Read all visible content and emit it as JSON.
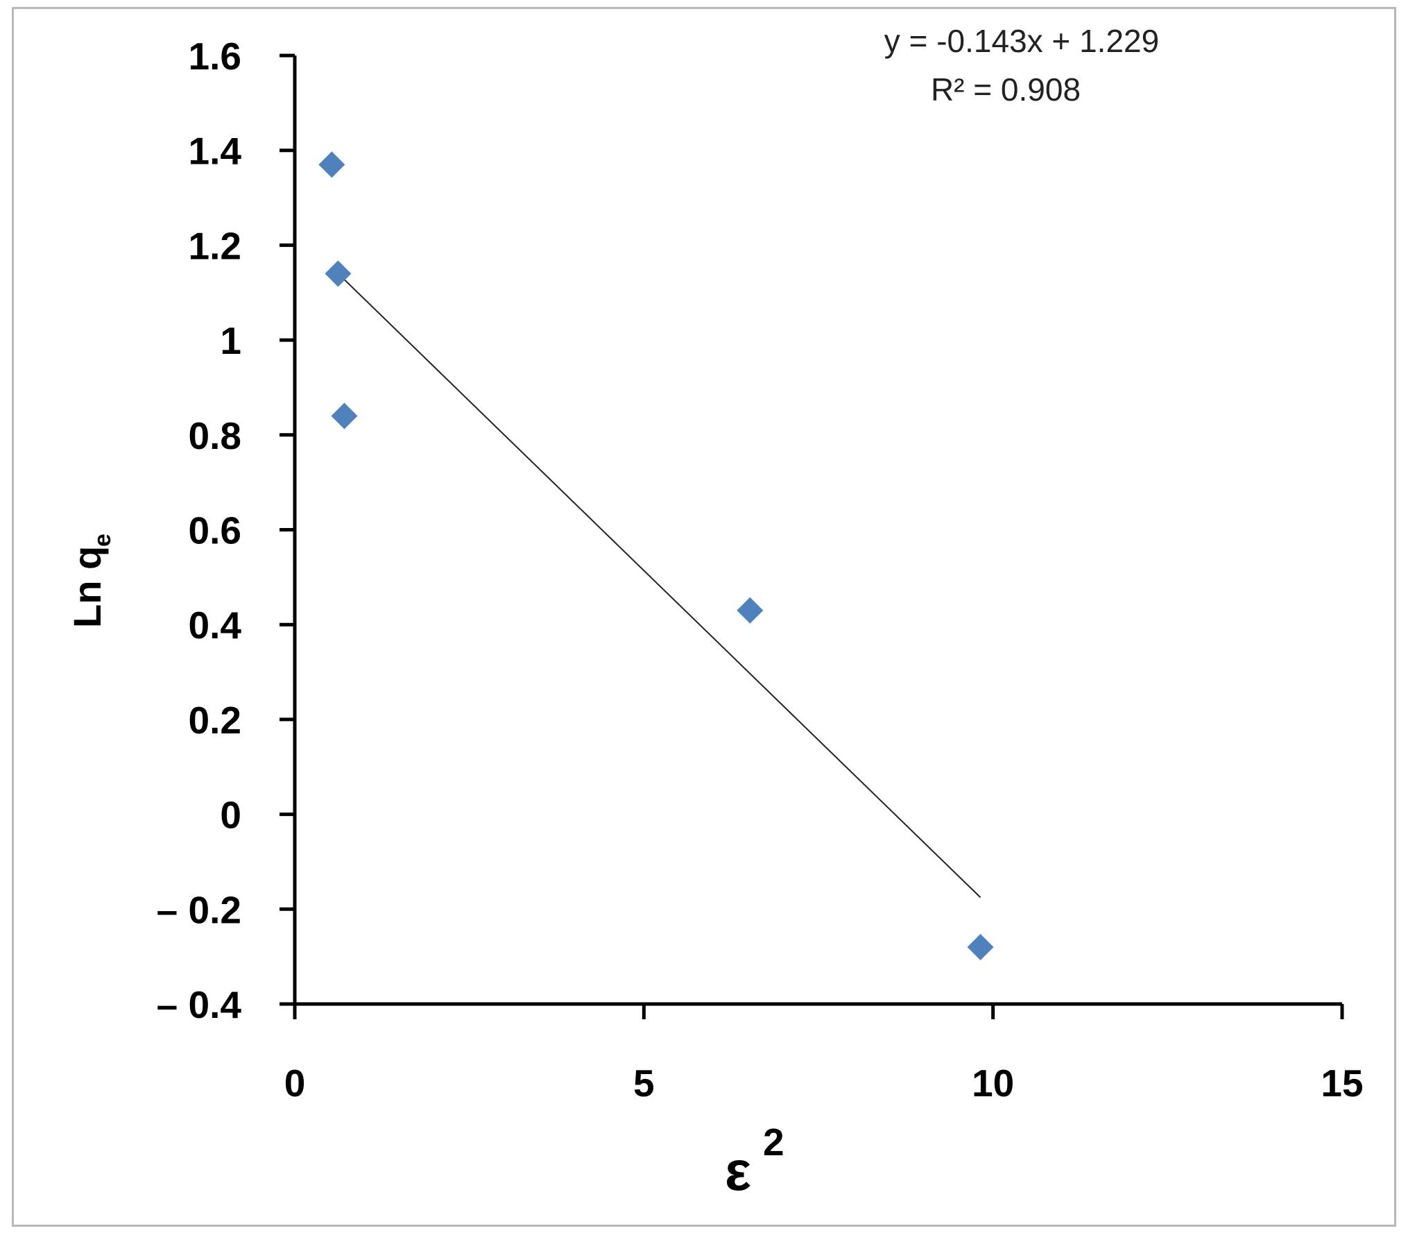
{
  "chart_data": {
    "type": "scatter",
    "title": "",
    "xlabel": "ε",
    "xlabel_superscript": "2",
    "ylabel": "Ln q",
    "ylabel_subscript": "e",
    "xlim": [
      0,
      15
    ],
    "ylim": [
      -0.4,
      1.6
    ],
    "x_ticks": [
      "0",
      "5",
      "10",
      "15"
    ],
    "y_ticks": [
      "1.6",
      "1.4",
      "1.2",
      "1",
      "0.8",
      "0.6",
      "0.4",
      "0.2",
      "0",
      "– 0.2",
      "– 0.4"
    ],
    "grid": false,
    "legend": "none",
    "marker": "diamond",
    "marker_color": "#4f81bd",
    "series": [
      {
        "points": [
          {
            "x": 0.53,
            "y": 1.37
          },
          {
            "x": 0.62,
            "y": 1.14
          },
          {
            "x": 0.71,
            "y": 0.84
          },
          {
            "x": 6.52,
            "y": 0.43
          },
          {
            "x": 9.82,
            "y": -0.28
          }
        ]
      }
    ],
    "trendline": {
      "type": "linear",
      "slope": -0.143,
      "intercept": 1.229,
      "x_start": 0.53,
      "x_end": 9.82,
      "color": "#222222"
    },
    "annotations": {
      "equation": "y = -0.143x + 1.229",
      "r_squared": "R² = 0.908"
    }
  }
}
